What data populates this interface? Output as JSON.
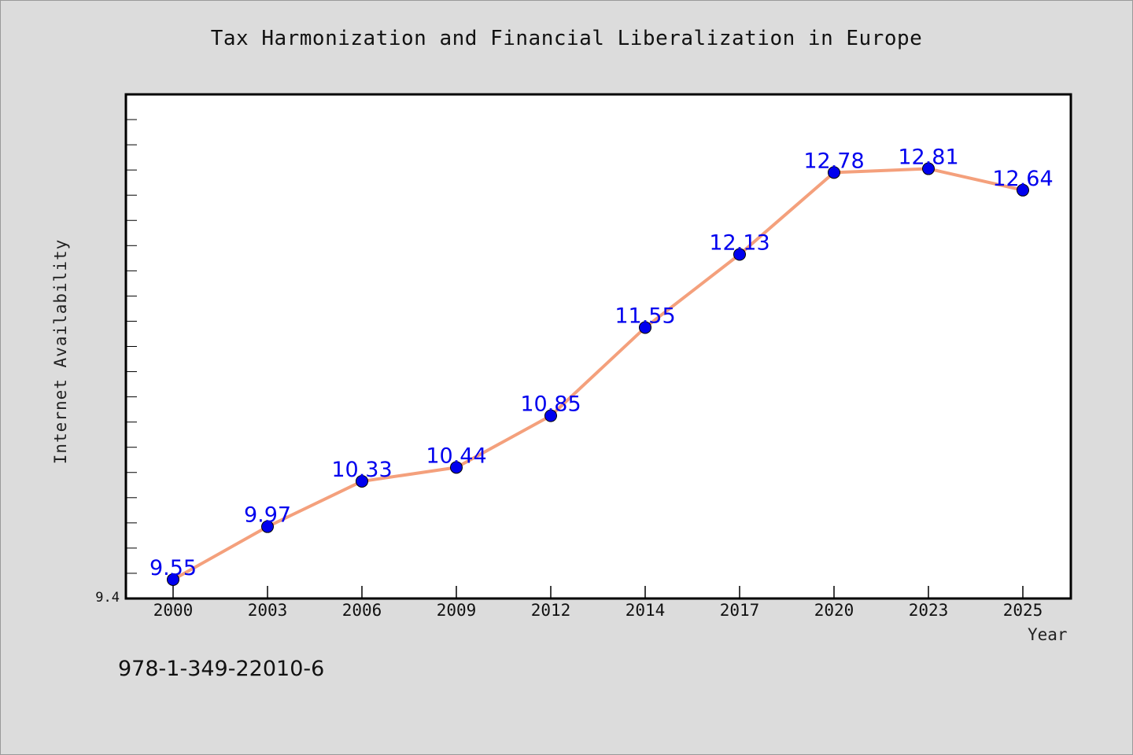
{
  "chart_data": {
    "type": "line",
    "title": "Tax Harmonization and Financial Liberalization in Europe",
    "xlabel": "Year",
    "ylabel": "Internet Availability",
    "categories": [
      "2000",
      "2003",
      "2006",
      "2009",
      "2012",
      "2014",
      "2017",
      "2020",
      "2023",
      "2025"
    ],
    "series": [
      {
        "values": [
          9.55,
          9.97,
          10.33,
          10.44,
          10.85,
          11.55,
          12.13,
          12.78,
          12.81,
          12.64
        ],
        "line_color": "#f4a07c",
        "marker_color": "#0000ee"
      }
    ],
    "data_labels": [
      "9.55",
      "9.97",
      "10.33",
      "10.44",
      "10.85",
      "11.55",
      "12.13",
      "12.78",
      "12.81",
      "12.64"
    ],
    "ylim": [
      9.4,
      13.4
    ],
    "y_tick_labels": [
      "9.4"
    ],
    "grid": false,
    "legend": "none",
    "colors": {
      "background": "#dcdcdc",
      "plot_area": "#ffffff",
      "label_text": "#0000ee"
    }
  },
  "footnote": "978-1-349-22010-6"
}
